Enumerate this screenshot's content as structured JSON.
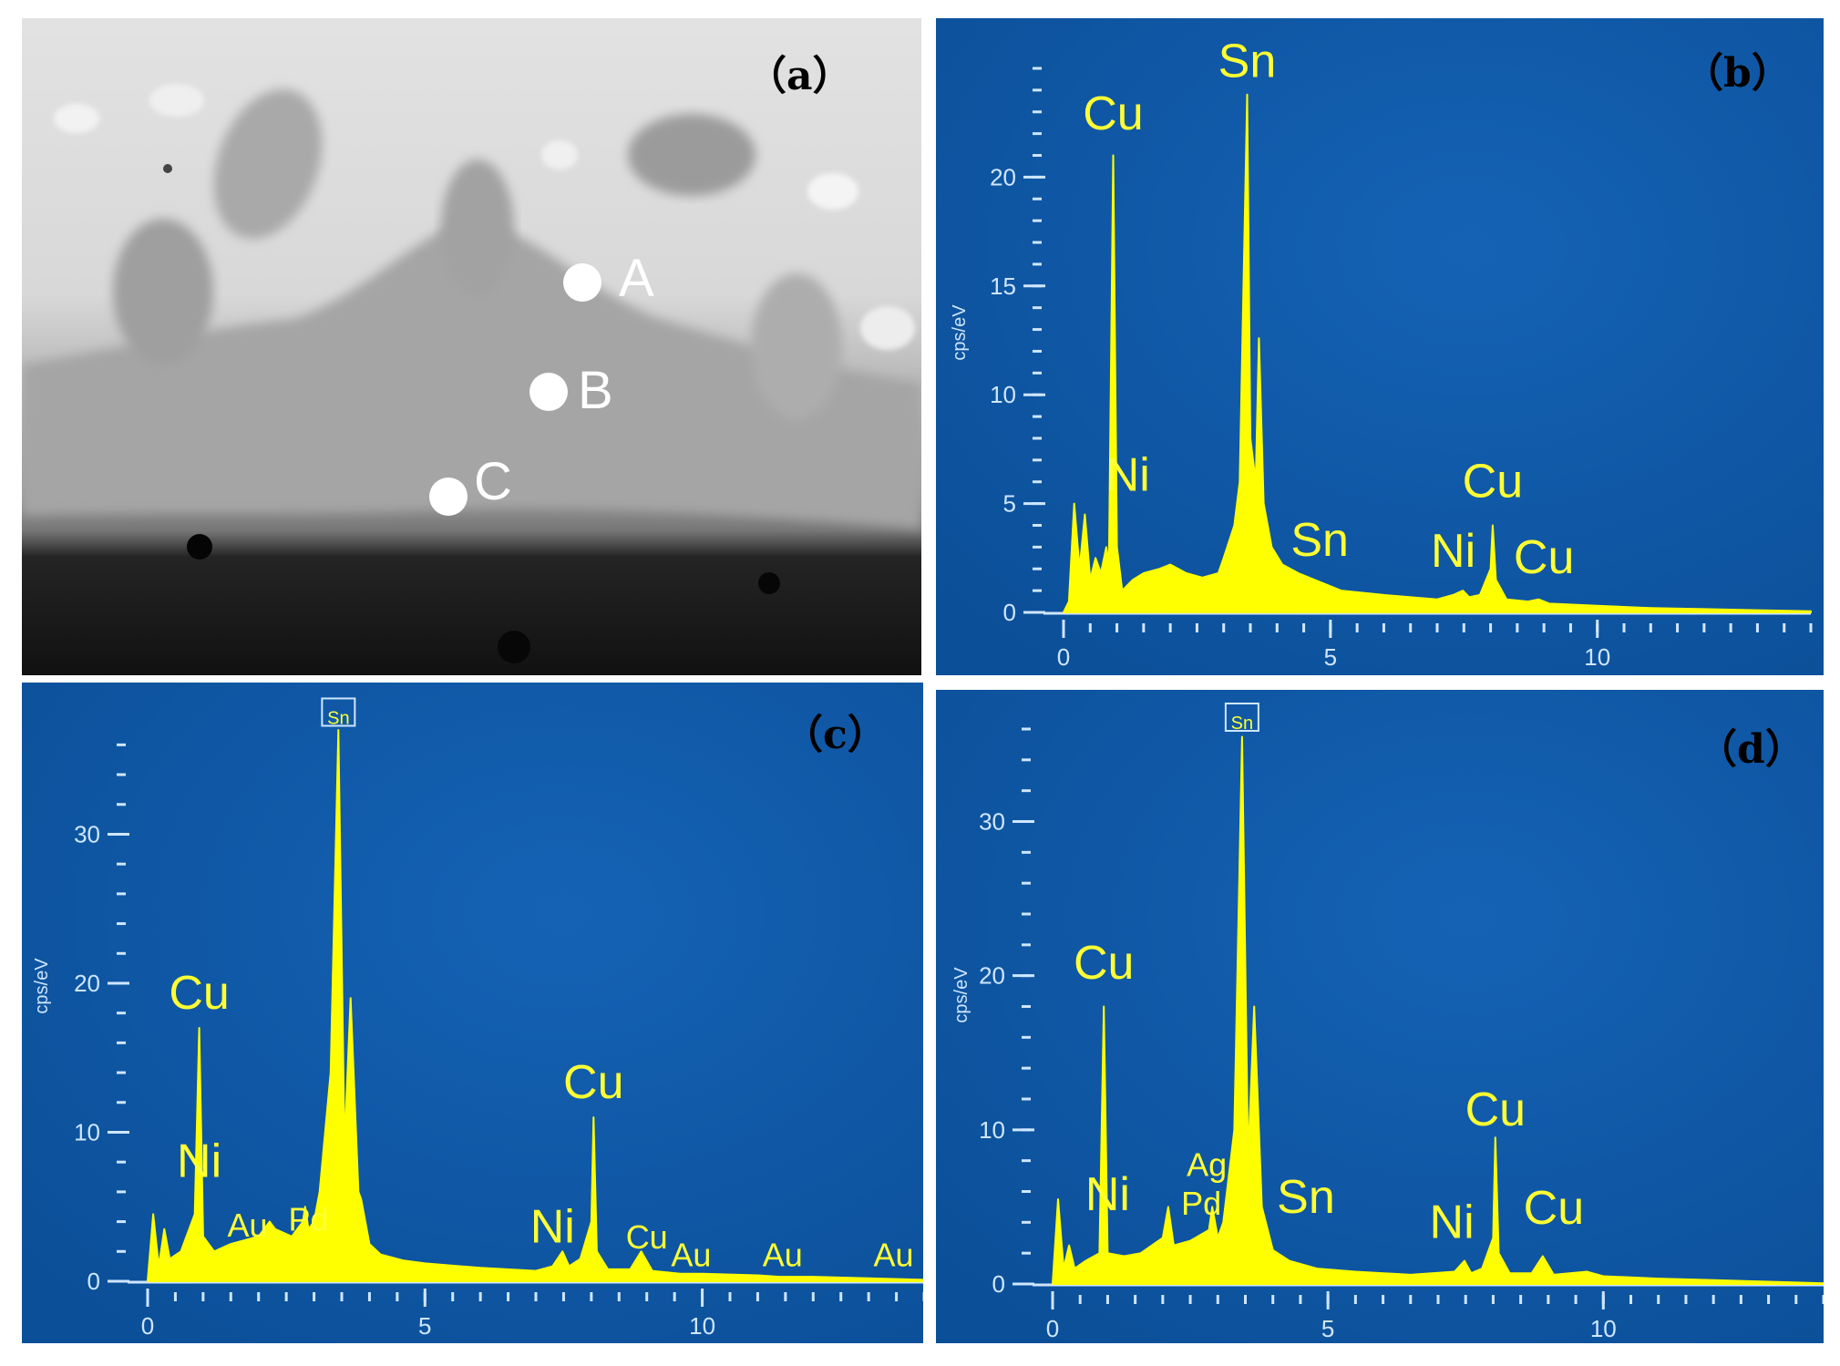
{
  "micrograph": {
    "panel_label": "（a）",
    "points": [
      {
        "label": "A"
      },
      {
        "label": "B"
      },
      {
        "label": "C"
      }
    ]
  },
  "colors": {
    "background": "#0b4f98",
    "spectrum": "#ffff00",
    "axis": "#cfe6ff",
    "peak_label": "#ffff33"
  },
  "chart_data": [
    {
      "type": "line",
      "panel_label": "（b）",
      "title": "",
      "xlabel": "",
      "ylabel": "cps/eV",
      "xlim": [
        0,
        14
      ],
      "ylim": [
        0,
        25
      ],
      "xticks": [
        0,
        5,
        10
      ],
      "yticks": [
        0,
        5,
        10,
        15,
        20
      ],
      "sn_box": false,
      "series": [
        {
          "x": [
            0,
            0.1,
            0.2,
            0.3,
            0.4,
            0.5,
            0.6,
            0.7,
            0.8,
            0.85,
            0.93,
            1.0,
            1.1,
            1.3,
            1.5,
            1.8,
            2.0,
            2.3,
            2.6,
            2.9,
            3.0,
            3.2,
            3.3,
            3.44,
            3.5,
            3.6,
            3.66,
            3.75,
            3.9,
            4.1,
            4.4,
            4.8,
            5.2,
            6.0,
            7.0,
            7.3,
            7.48,
            7.6,
            7.8,
            8.0,
            8.04,
            8.1,
            8.3,
            8.7,
            8.9,
            9.1,
            10.0,
            11.0,
            12.0,
            13.0,
            14.0
          ],
          "y": [
            0,
            0.5,
            5.0,
            2.0,
            4.5,
            1.5,
            2.5,
            1.8,
            3.0,
            2.2,
            21.0,
            3.0,
            1.0,
            1.5,
            1.8,
            2.0,
            2.2,
            1.8,
            1.6,
            1.8,
            2.5,
            4.0,
            6.0,
            23.8,
            8.0,
            6.0,
            12.6,
            5.0,
            3.0,
            2.2,
            1.8,
            1.4,
            1.0,
            0.8,
            0.6,
            0.8,
            1.0,
            0.7,
            0.8,
            2.0,
            4.0,
            1.5,
            0.6,
            0.5,
            0.6,
            0.4,
            0.3,
            0.2,
            0.15,
            0.1,
            0.05
          ]
        }
      ],
      "labels": [
        {
          "text": "Cu",
          "x": 0.93,
          "y": 22.2,
          "size": "large"
        },
        {
          "text": "Sn",
          "x": 3.44,
          "y": 24.6,
          "size": "large"
        },
        {
          "text": "Ni",
          "x": 1.2,
          "y": 5.6,
          "size": "large"
        },
        {
          "text": "Sn",
          "x": 4.8,
          "y": 2.6,
          "size": "large"
        },
        {
          "text": "Cu",
          "x": 8.04,
          "y": 5.3,
          "size": "large"
        },
        {
          "text": "Ni",
          "x": 7.3,
          "y": 2.1,
          "size": "large"
        },
        {
          "text": "Cu",
          "x": 9.0,
          "y": 1.8,
          "size": "large"
        }
      ]
    },
    {
      "type": "line",
      "panel_label": "（c）",
      "title": "",
      "xlabel": "",
      "ylabel": "cps/eV",
      "xlim": [
        0,
        14
      ],
      "ylim": [
        0,
        37
      ],
      "xticks": [
        0,
        5,
        10
      ],
      "yticks": [
        0,
        10,
        20,
        30
      ],
      "sn_box": true,
      "series": [
        {
          "x": [
            0,
            0.1,
            0.2,
            0.3,
            0.4,
            0.6,
            0.85,
            0.93,
            1.0,
            1.2,
            1.5,
            2.0,
            2.1,
            2.2,
            2.3,
            2.6,
            2.8,
            2.84,
            2.9,
            3.0,
            3.1,
            3.3,
            3.44,
            3.55,
            3.66,
            3.8,
            3.85,
            4.0,
            4.2,
            4.6,
            5.0,
            6.0,
            7.0,
            7.3,
            7.48,
            7.6,
            7.8,
            8.0,
            8.04,
            8.1,
            8.3,
            8.7,
            8.9,
            9.1,
            9.6,
            10.0,
            11.0,
            11.4,
            12.0,
            13.0,
            14.0
          ],
          "y": [
            0,
            4.5,
            1.0,
            3.5,
            1.5,
            2.0,
            4.5,
            17.0,
            3.0,
            2.0,
            2.5,
            3.0,
            3.5,
            4.0,
            3.5,
            3.0,
            4.0,
            5.0,
            3.5,
            4.0,
            6.0,
            14.0,
            37.0,
            9.0,
            19.0,
            6.0,
            5.5,
            2.5,
            1.8,
            1.4,
            1.2,
            0.9,
            0.7,
            1.0,
            2.0,
            1.0,
            1.5,
            4.0,
            11.0,
            2.0,
            0.8,
            0.8,
            2.0,
            0.7,
            0.5,
            0.5,
            0.4,
            0.3,
            0.3,
            0.2,
            0.1
          ]
        }
      ],
      "labels": [
        {
          "text": "Sn",
          "x": 3.44,
          "y": 37.4,
          "size": "small"
        },
        {
          "text": "Cu",
          "x": 0.93,
          "y": 18.3,
          "size": "large"
        },
        {
          "text": "Ni",
          "x": 0.93,
          "y": 7.0,
          "size": "large"
        },
        {
          "text": "Au",
          "x": 1.8,
          "y": 3.0,
          "size": "medium"
        },
        {
          "text": "Pd",
          "x": 2.9,
          "y": 3.4,
          "size": "medium"
        },
        {
          "text": "Cu",
          "x": 8.04,
          "y": 12.3,
          "size": "large"
        },
        {
          "text": "Ni",
          "x": 7.3,
          "y": 2.6,
          "size": "large"
        },
        {
          "text": "Cu",
          "x": 9.0,
          "y": 2.2,
          "size": "medium"
        },
        {
          "text": "Au",
          "x": 9.8,
          "y": 1.0,
          "size": "medium"
        },
        {
          "text": "Au",
          "x": 11.45,
          "y": 1.0,
          "size": "medium"
        },
        {
          "text": "Au",
          "x": 13.45,
          "y": 1.0,
          "size": "medium"
        }
      ]
    },
    {
      "type": "line",
      "panel_label": "（d）",
      "title": "",
      "xlabel": "",
      "ylabel": "cps/eV",
      "xlim": [
        0,
        14
      ],
      "ylim": [
        0,
        36
      ],
      "xticks": [
        0,
        5,
        10
      ],
      "yticks": [
        0,
        10,
        20,
        30
      ],
      "sn_box": true,
      "series": [
        {
          "x": [
            0,
            0.1,
            0.2,
            0.3,
            0.4,
            0.6,
            0.85,
            0.93,
            1.0,
            1.3,
            1.6,
            2.0,
            2.1,
            2.2,
            2.5,
            2.84,
            2.9,
            3.0,
            3.1,
            3.3,
            3.44,
            3.55,
            3.66,
            3.8,
            4.0,
            4.3,
            4.8,
            5.5,
            6.5,
            7.3,
            7.48,
            7.6,
            7.8,
            8.0,
            8.04,
            8.1,
            8.3,
            8.7,
            8.9,
            9.1,
            9.7,
            10.0,
            11.0,
            12.0,
            13.0,
            14.0
          ],
          "y": [
            0,
            5.5,
            1.0,
            2.5,
            1.0,
            1.5,
            2.0,
            18.0,
            2.0,
            1.8,
            2.0,
            3.0,
            5.0,
            2.5,
            2.8,
            3.5,
            5.0,
            3.0,
            4.0,
            10.0,
            35.5,
            8.0,
            18.0,
            5.0,
            2.2,
            1.5,
            1.0,
            0.8,
            0.6,
            0.8,
            1.5,
            0.7,
            1.0,
            3.0,
            9.5,
            2.0,
            0.7,
            0.7,
            1.8,
            0.6,
            0.8,
            0.5,
            0.35,
            0.25,
            0.15,
            0.05
          ]
        }
      ],
      "labels": [
        {
          "text": "Sn",
          "x": 3.44,
          "y": 36.0,
          "size": "small"
        },
        {
          "text": "Cu",
          "x": 0.93,
          "y": 19.8,
          "size": "large"
        },
        {
          "text": "Ni",
          "x": 1.0,
          "y": 4.8,
          "size": "large"
        },
        {
          "text": "Ag",
          "x": 2.8,
          "y": 7.0,
          "size": "medium"
        },
        {
          "text": "Pd",
          "x": 2.7,
          "y": 4.5,
          "size": "medium"
        },
        {
          "text": "Sn",
          "x": 4.6,
          "y": 4.6,
          "size": "large"
        },
        {
          "text": "Cu",
          "x": 8.04,
          "y": 10.3,
          "size": "large"
        },
        {
          "text": "Ni",
          "x": 7.25,
          "y": 3.0,
          "size": "large"
        },
        {
          "text": "Cu",
          "x": 9.1,
          "y": 3.9,
          "size": "large"
        }
      ]
    }
  ]
}
